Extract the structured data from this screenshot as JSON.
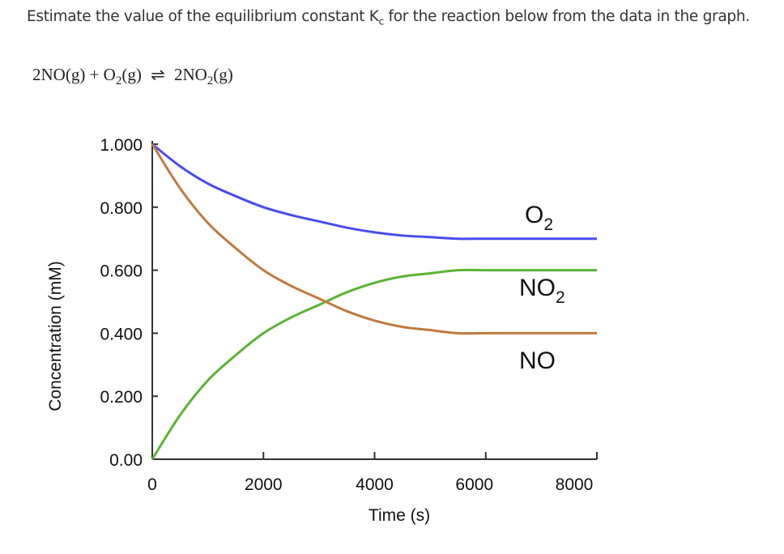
{
  "question": {
    "text_before": "Estimate the value of the equilibrium constant K",
    "subscript": "c",
    "text_after": " for the reaction below from the data in the graph."
  },
  "equation": {
    "reactants": "2NO(g) + O",
    "reactant_sub": "2",
    "reactant_tail": "(g)",
    "arrow": "⇌",
    "product": "2NO",
    "product_sub": "2",
    "product_tail": "(g)"
  },
  "chart_data": {
    "type": "line",
    "title": "",
    "xlabel": "Time (s)",
    "ylabel": "Concentration (mM)",
    "xlim": [
      0,
      8000
    ],
    "ylim": [
      0,
      1.0
    ],
    "grid": false,
    "x_ticks": [
      "0",
      "2000",
      "4000",
      "6000",
      "8000"
    ],
    "x_tick_values": [
      0,
      2000,
      4000,
      6000,
      8000
    ],
    "y_ticks": [
      "0.00",
      "0.200",
      "0.400",
      "0.600",
      "0.800",
      "1.000"
    ],
    "y_tick_values": [
      0,
      0.2,
      0.4,
      0.6,
      0.8,
      1.0
    ],
    "x": [
      0,
      500,
      1000,
      1500,
      2000,
      2500,
      3000,
      3500,
      4000,
      4500,
      5000,
      5500,
      6000,
      7000,
      8000
    ],
    "series": [
      {
        "name": "O2",
        "label": "O",
        "label_sub": "2",
        "color": "#4a4cf0",
        "values": [
          1.0,
          0.93,
          0.875,
          0.835,
          0.8,
          0.775,
          0.755,
          0.735,
          0.72,
          0.71,
          0.705,
          0.7,
          0.7,
          0.7,
          0.7
        ]
      },
      {
        "name": "NO2",
        "label": "NO",
        "label_sub": "2",
        "color": "#5cb337",
        "values": [
          0,
          0.14,
          0.25,
          0.33,
          0.4,
          0.45,
          0.49,
          0.53,
          0.56,
          0.58,
          0.59,
          0.6,
          0.6,
          0.6,
          0.6
        ]
      },
      {
        "name": "NO",
        "label": "NO",
        "label_sub": "",
        "color": "#c07a40",
        "values": [
          1.0,
          0.86,
          0.75,
          0.67,
          0.6,
          0.55,
          0.51,
          0.47,
          0.44,
          0.42,
          0.41,
          0.4,
          0.4,
          0.4,
          0.4
        ]
      }
    ]
  }
}
